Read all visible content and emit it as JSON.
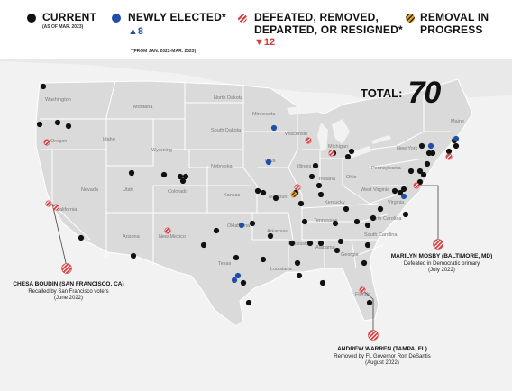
{
  "legend": {
    "current": {
      "label": "CURRENT",
      "sub": "(AS OF MAR. 2023)",
      "color": "#111111"
    },
    "new": {
      "label": "NEWLY ELECTED*",
      "change": "▲8",
      "color": "#1f4fa8"
    },
    "defeated": {
      "label": "DEFEATED, REMOVED,",
      "label2": "DEPARTED, OR RESIGNED*",
      "change": "▼12",
      "color": "#d63a3a"
    },
    "removal": {
      "label": "REMOVAL IN",
      "label2": "PROGRESS",
      "color": "#e6a32a"
    },
    "footnote": "*(FROM JAN. 2022-MAR. 2023)"
  },
  "total": {
    "label": "TOTAL:",
    "value": "70"
  },
  "callouts": {
    "boudin": {
      "name": "CHESA BOUDIN (SAN FRANCISCO, CA)",
      "line1": "Recalled by San Francisco voters",
      "line2": "(June 2022)"
    },
    "mosby": {
      "name": "MARILYN MOSBY (BALTIMORE, MD)",
      "line1": "Defeated in Democratic primary",
      "line2": "(July 2022)"
    },
    "warren": {
      "name": "ANDREW WARREN (TAMPA, FL)",
      "line1": "Removed by FL Governor Ron DeSantis",
      "line2": "(August 2022)"
    }
  },
  "states": [
    {
      "name": "Washington"
    },
    {
      "name": "Oregon"
    },
    {
      "name": "California"
    },
    {
      "name": "Nevada"
    },
    {
      "name": "Idaho"
    },
    {
      "name": "Montana"
    },
    {
      "name": "Wyoming"
    },
    {
      "name": "Utah"
    },
    {
      "name": "Arizona"
    },
    {
      "name": "Colorado"
    },
    {
      "name": "New Mexico"
    },
    {
      "name": "North Dakota"
    },
    {
      "name": "South Dakota"
    },
    {
      "name": "Nebraska"
    },
    {
      "name": "Kansas"
    },
    {
      "name": "Oklahoma"
    },
    {
      "name": "Texas"
    },
    {
      "name": "Minnesota"
    },
    {
      "name": "Iowa"
    },
    {
      "name": "Missouri"
    },
    {
      "name": "Arkansas"
    },
    {
      "name": "Louisiana"
    },
    {
      "name": "Wisconsin"
    },
    {
      "name": "Illinois"
    },
    {
      "name": "Michigan"
    },
    {
      "name": "Indiana"
    },
    {
      "name": "Ohio"
    },
    {
      "name": "Kentucky"
    },
    {
      "name": "Tennessee"
    },
    {
      "name": "Mississippi"
    },
    {
      "name": "Alabama"
    },
    {
      "name": "Georgia"
    },
    {
      "name": "Florida"
    },
    {
      "name": "South Carolina"
    },
    {
      "name": "North Carolina"
    },
    {
      "name": "Virginia"
    },
    {
      "name": "West Virginia"
    },
    {
      "name": "Pennsylvania"
    },
    {
      "name": "New York"
    },
    {
      "name": "Maine"
    }
  ]
}
